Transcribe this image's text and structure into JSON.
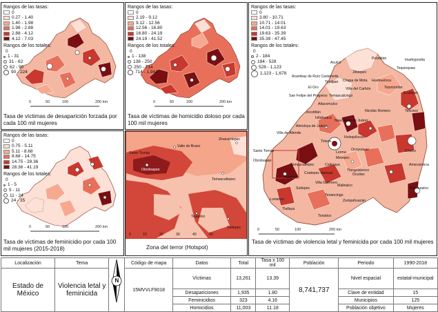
{
  "panels": {
    "desaparicion": {
      "caption": "Tasa de víctimas de desaparición forzada por cada 100 mil mujeres",
      "legend_rates_title": "Rangos de las tasas:",
      "rates": [
        {
          "label": "0",
          "color": "#ffffff"
        },
        {
          "label": "0.27 - 1.40",
          "color": "#fde0d6"
        },
        {
          "label": "1.40 - 1.98",
          "color": "#f6a98f"
        },
        {
          "label": "1.98 - 2.88",
          "color": "#e8705a"
        },
        {
          "label": "2.88 - 4.12",
          "color": "#c8382e"
        },
        {
          "label": "4.12 - 7.03",
          "color": "#7a0f12"
        }
      ],
      "legend_totals_title": "Rangos de los totales:",
      "totals": [
        "0",
        "1 - 31",
        "31 - 62",
        "62 - 90",
        "90 - 224"
      ],
      "scale": {
        "ticks": [
          "0",
          "50",
          "100",
          "200 km"
        ]
      }
    },
    "homicidio": {
      "caption": "Tasa de víctimas de homicidio doloso por cada 100 mil mujeres",
      "legend_rates_title": "Rangos de las tasas:",
      "rates": [
        {
          "label": "0",
          "color": "#ffffff"
        },
        {
          "label": "2.19 - 9.12",
          "color": "#fde0d6"
        },
        {
          "label": "9.12 - 12.56",
          "color": "#f6a98f"
        },
        {
          "label": "12.56 - 16.80",
          "color": "#e8705a"
        },
        {
          "label": "16.80 - 24.19",
          "color": "#c8382e"
        },
        {
          "label": "24.19 - 41.52",
          "color": "#7a0f12"
        }
      ],
      "legend_totals_title": "Rangos de los totales:",
      "totals": [
        "0",
        "1 - 138",
        "138 - 250",
        "250 - 714",
        "714 - 1,944"
      ],
      "scale": {
        "ticks": [
          "0",
          "50",
          "100",
          "200 km"
        ]
      }
    },
    "feminicidio": {
      "caption": "Tasa de víctimas de feminicidio por cada 100 mil mujeres (2015-2018)",
      "legend_rates_title": "Rangos de las tasas:",
      "rates": [
        {
          "label": "0",
          "color": "#ffffff"
        },
        {
          "label": "0.75 - 5.11",
          "color": "#fde0d6"
        },
        {
          "label": "5.11 - 8.68",
          "color": "#f6a98f"
        },
        {
          "label": "8.68 - 14.75",
          "color": "#e8705a"
        },
        {
          "label": "14.75 - 28.36",
          "color": "#c8382e"
        },
        {
          "label": "28.36 - 41.19",
          "color": "#7a0f12"
        }
      ],
      "legend_totals_title": "Rangos de los totales:",
      "totals": [
        "0",
        "1 - 5",
        "5 - 11",
        "11 - 24",
        "24 - 35"
      ],
      "scale": {
        "ticks": [
          "0",
          "50",
          "100",
          "200 km"
        ]
      }
    },
    "hotspot": {
      "caption": "Zona del terror (Hotspot)",
      "places": [
        "Santo Tomás",
        "Valle de Bravo",
        "Zinacantepec",
        "Otzoloapan",
        "Temascaltepec",
        "Tejupilco",
        "Sultepec"
      ],
      "axis_ticks": [
        "0",
        "10",
        "20",
        "30",
        "40",
        "50"
      ]
    },
    "letal": {
      "caption": "Tasa de víctimas de violencia letal y feminicida por cada 100 mil mujeres",
      "legend_rates_title": "Rangos de las tasas:",
      "rates": [
        {
          "label": "0",
          "color": "#ffffff"
        },
        {
          "label": "3.80 - 10.71",
          "color": "#fde0d6"
        },
        {
          "label": "10.71 - 14.01",
          "color": "#f6a98f"
        },
        {
          "label": "14.01 - 19.63",
          "color": "#e8705a"
        },
        {
          "label": "19.63 - 35.39",
          "color": "#c8382e"
        },
        {
          "label": "35.39 - 47.45",
          "color": "#7a0f12"
        }
      ],
      "legend_totals_title": "Rangos de los totales:",
      "totals": [
        "0",
        "2 - 184",
        "184 - 528",
        "528 - 1,123",
        "1,123 - 1,678"
      ],
      "places": [
        "Acambay de Ruíz Castañeda",
        "Aculco",
        "Polotitlán",
        "Jilotepec",
        "Huehuetoca",
        "Huehypoxtla",
        "Tequixquiac",
        "Tepotzotlán",
        "Villa del Carbón",
        "Chapa de Mota",
        "Timilpan",
        "San Felipe del Progreso",
        "El Oro",
        "Temascalcingo",
        "Atlacomulco",
        "Jocotitlán",
        "Villa de Allende",
        "Almoloya de Juárez",
        "Ixtlahuaca",
        "Nicolás Romero",
        "Naucalpan de Juárez",
        "Huixquilucan",
        "Toluca",
        "Lerma",
        "Texcoco",
        "Ecatepec",
        "Chalco",
        "Amecameca",
        "Tlalmanalco",
        "Tlatlaya",
        "Sultepec",
        "Tejupilco",
        "Temascaltepec",
        "Otzoloapan",
        "Santo Tomás",
        "Malinalco",
        "Ocuilan",
        "Zumpahuacán",
        "Tenancingo",
        "Villa Guerrero",
        "Calimaya",
        "Metepec",
        "Tianguistenco",
        "Coatepec Harinas",
        "Tonatico",
        "Luvianos",
        "Ocoyoacac"
      ],
      "scale": {
        "ticks": [
          "0",
          "50",
          "100",
          "200 km"
        ]
      }
    }
  },
  "table": {
    "localizacion_header": "Localización",
    "tema_header": "Tema",
    "codigo_header": "Código de mapa",
    "datos_header": "Datos",
    "total_header": "Total",
    "tasa_header": "Tasa x 100 mil",
    "poblacion_header": "Población",
    "periodo_header": "Periodo",
    "periodo_value": "1990-2018",
    "localizacion": "Estado de México",
    "tema": "Violencia letal y feminicida",
    "codigo": "15MVVLF9018",
    "poblacion": "8,741,737",
    "rows": [
      {
        "dato": "Víctimas",
        "total": "13,261",
        "tasa": "13.39"
      },
      {
        "dato": "Desapariciones",
        "total": "1,935",
        "tasa": "1.80"
      },
      {
        "dato": "Feminicidios",
        "total": "323",
        "tasa": "4.16"
      },
      {
        "dato": "Homicidios",
        "total": "11,003",
        "tasa": "11.18"
      }
    ],
    "meta": [
      {
        "label": "Nivel espacial",
        "value": "estatal-municipal"
      },
      {
        "label": "Clave de entidad",
        "value": "15"
      },
      {
        "label": "Municipios",
        "value": "125"
      },
      {
        "label": "Población objetivo",
        "value": "Mujeres"
      }
    ],
    "north_letter": "N"
  }
}
